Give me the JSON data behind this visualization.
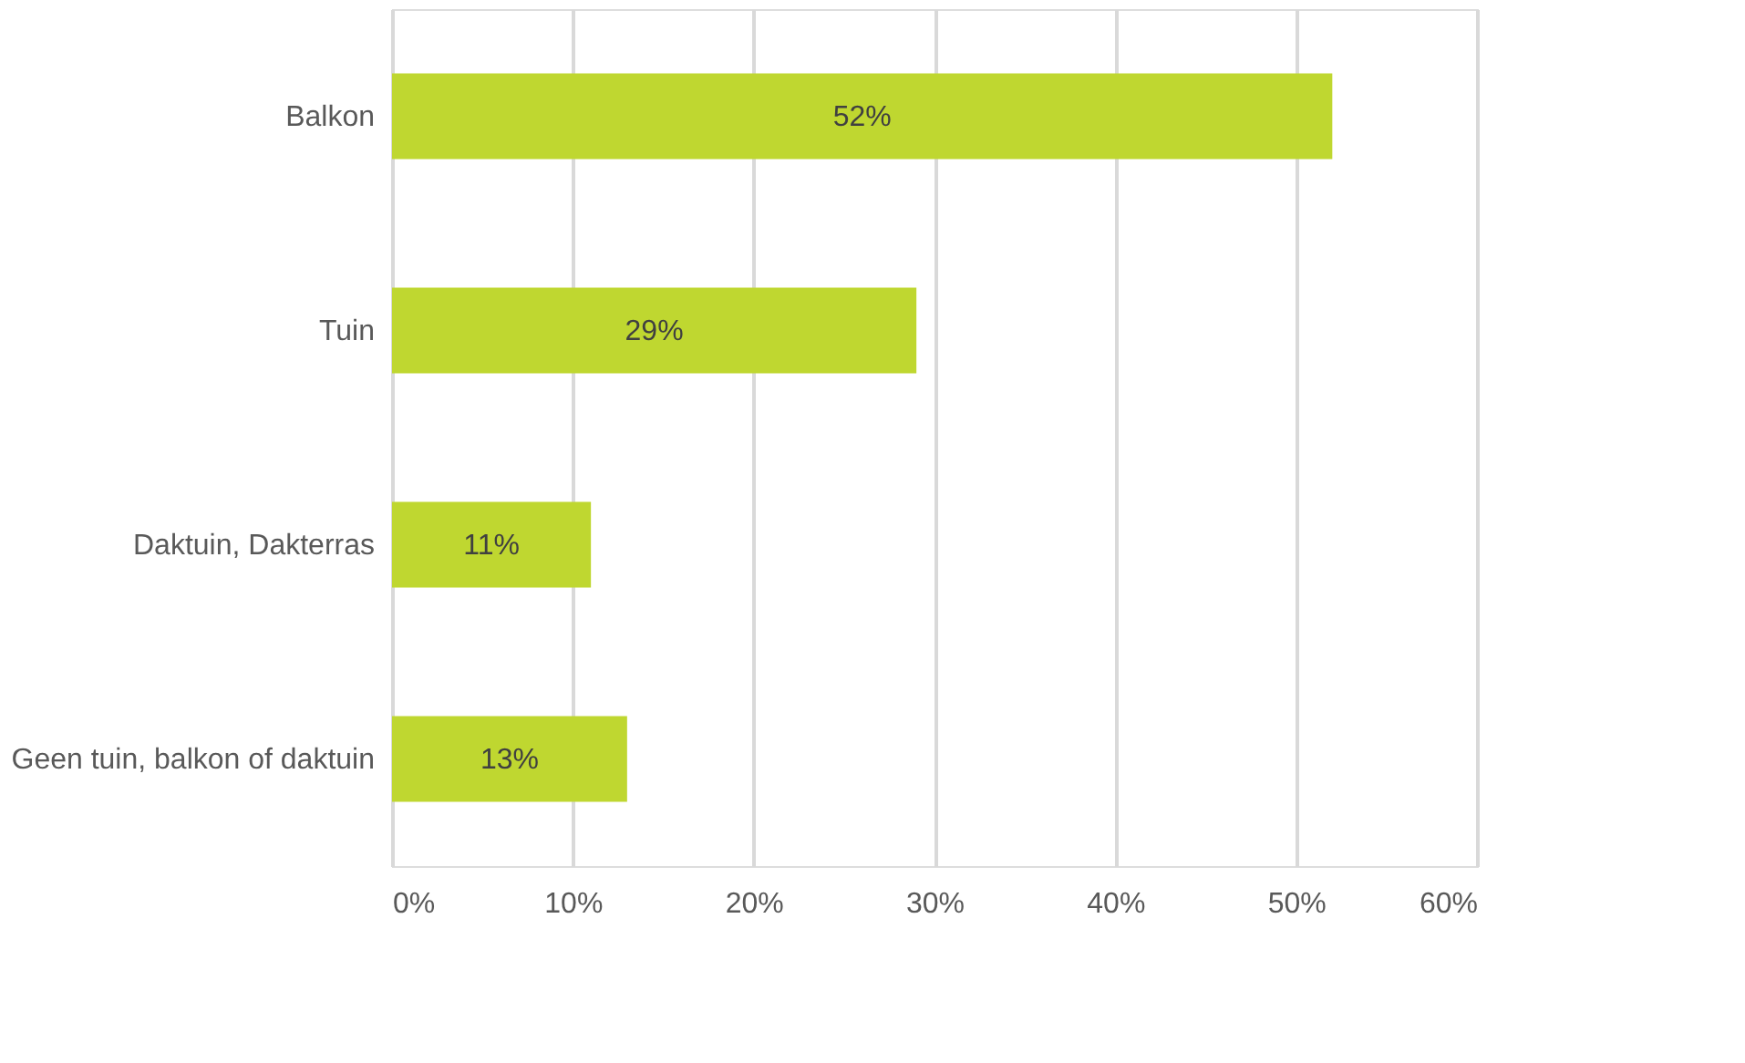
{
  "chart_data": {
    "type": "bar",
    "orientation": "horizontal",
    "categories": [
      "Balkon",
      "Tuin",
      "Daktuin, Dakterras",
      "Geen tuin, balkon of daktuin"
    ],
    "values": [
      52,
      29,
      11,
      13
    ],
    "value_labels": [
      "52%",
      "29%",
      "11%",
      "13%"
    ],
    "color": "#bfd730",
    "xlim": [
      0,
      60
    ],
    "xticks": [
      {
        "value": 0,
        "label": "0%"
      },
      {
        "value": 10,
        "label": "10%"
      },
      {
        "value": 20,
        "label": "20%"
      },
      {
        "value": 30,
        "label": "30%"
      },
      {
        "value": 40,
        "label": "40%"
      },
      {
        "value": 50,
        "label": "50%"
      },
      {
        "value": 60,
        "label": "60%"
      }
    ],
    "grid": "x"
  }
}
